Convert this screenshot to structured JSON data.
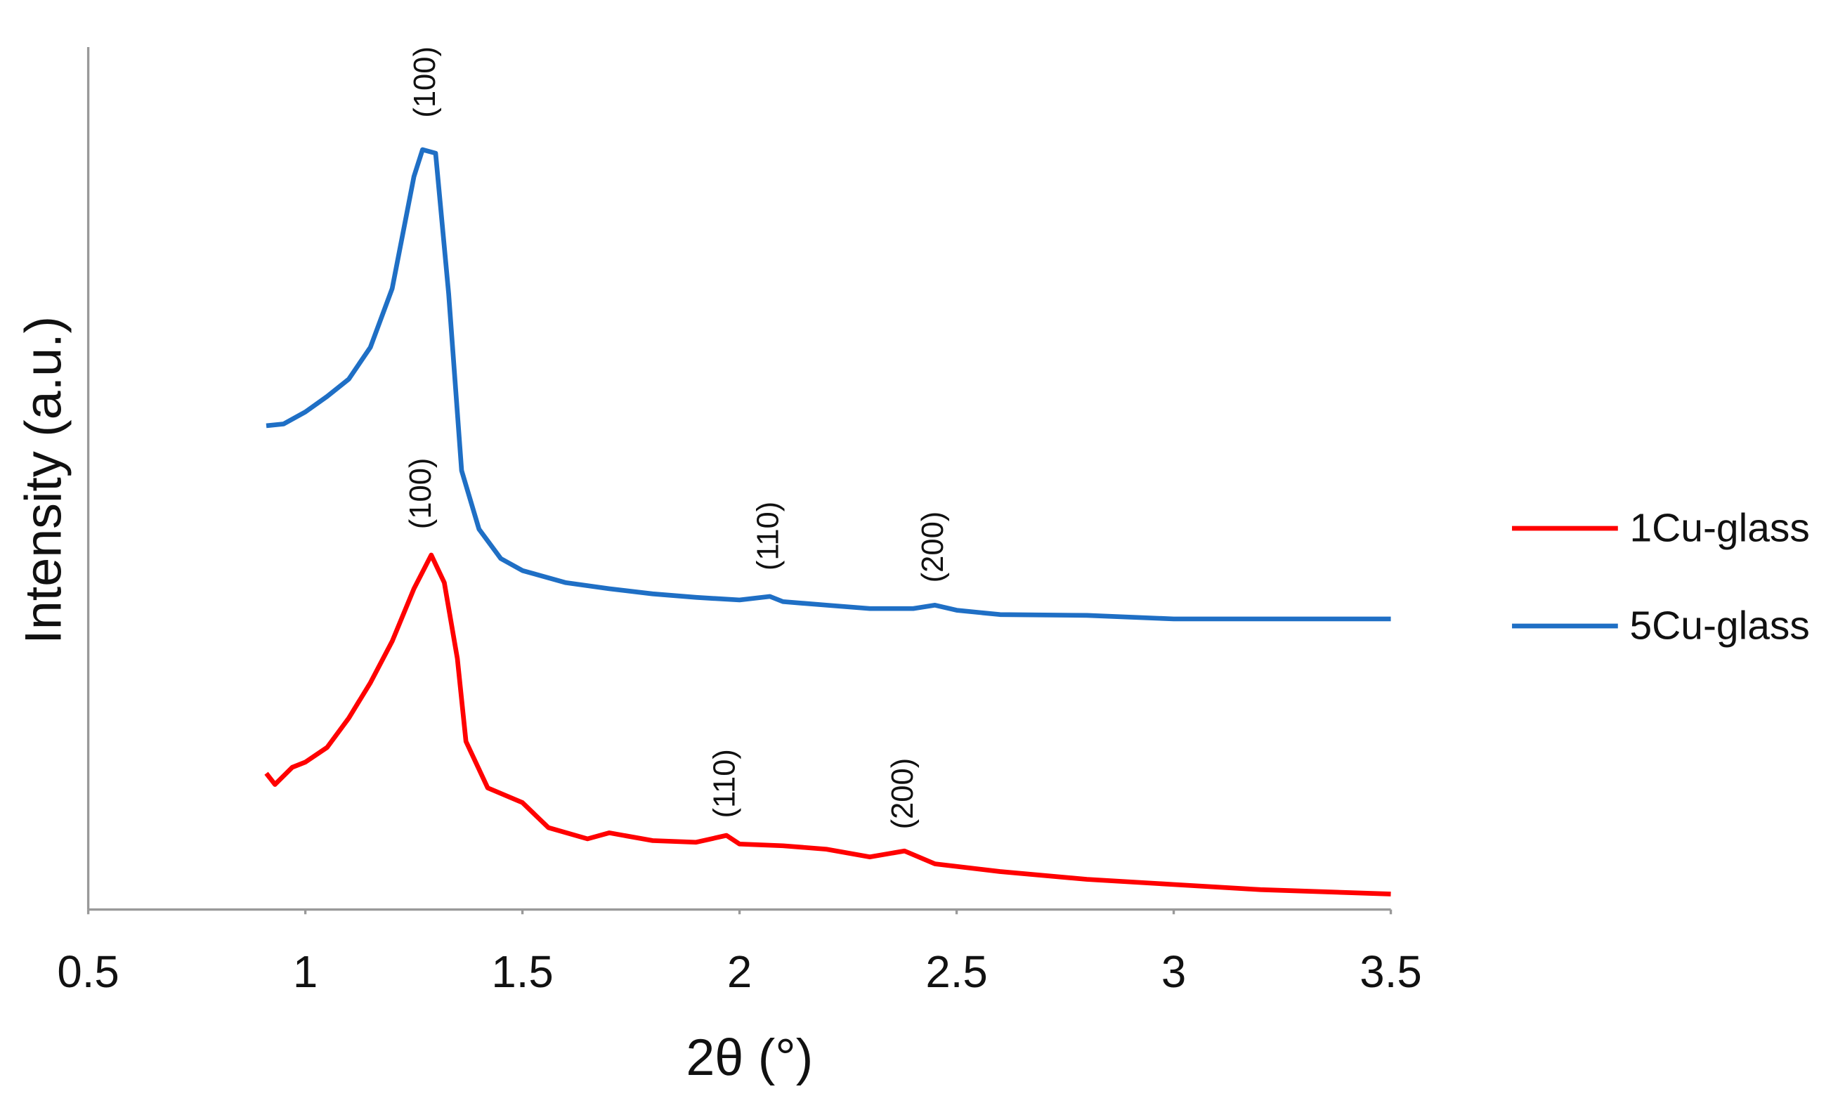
{
  "chart_data": {
    "type": "line",
    "x_label": "2θ (°)",
    "y_label": "Intensity (a.u.)",
    "xlim": [
      0.5,
      3.5
    ],
    "xticks": [
      0.5,
      1,
      1.5,
      2,
      2.5,
      3,
      3.5
    ],
    "ylim": [
      0,
      100
    ],
    "grid": false,
    "legend": "right",
    "series": [
      {
        "name": "1Cu-glass",
        "color": "#ff0000",
        "x": [
          0.91,
          0.93,
          0.97,
          1.0,
          1.05,
          1.1,
          1.15,
          1.2,
          1.25,
          1.29,
          1.32,
          1.35,
          1.37,
          1.42,
          1.5,
          1.56,
          1.65,
          1.7,
          1.8,
          1.9,
          1.97,
          2.0,
          2.1,
          2.2,
          2.3,
          2.38,
          2.45,
          2.6,
          2.8,
          3.0,
          3.2,
          3.5
        ],
        "values": [
          15.8,
          14.5,
          16.5,
          17.1,
          18.8,
          22.2,
          26.3,
          31.1,
          37.2,
          41.1,
          37.9,
          29.1,
          19.5,
          14.1,
          12.4,
          9.5,
          8.2,
          8.9,
          8.0,
          7.8,
          8.6,
          7.6,
          7.4,
          7.0,
          6.1,
          6.8,
          5.3,
          4.4,
          3.5,
          2.9,
          2.3,
          1.8
        ]
      },
      {
        "name": "5Cu-glass",
        "color": "#1f6fc5",
        "x": [
          0.91,
          0.95,
          1.0,
          1.05,
          1.1,
          1.15,
          1.2,
          1.25,
          1.27,
          1.3,
          1.33,
          1.36,
          1.4,
          1.45,
          1.5,
          1.6,
          1.7,
          1.8,
          1.9,
          2.0,
          2.07,
          2.1,
          2.2,
          2.3,
          2.4,
          2.45,
          2.5,
          2.6,
          2.8,
          3.0,
          3.5
        ],
        "values": [
          56.1,
          56.3,
          57.7,
          59.5,
          61.5,
          65.2,
          72.0,
          85.0,
          88.1,
          87.7,
          71.4,
          50.9,
          44.1,
          40.7,
          39.3,
          37.9,
          37.2,
          36.6,
          36.2,
          35.9,
          36.3,
          35.7,
          35.3,
          34.9,
          34.9,
          35.3,
          34.7,
          34.2,
          34.1,
          33.7,
          33.7
        ]
      }
    ],
    "annotations": [
      {
        "text": "(100)",
        "x": 1.28,
        "y": 91.8
      },
      {
        "text": "(110)",
        "x": 2.07,
        "y": 39.3
      },
      {
        "text": "(200)",
        "x": 2.45,
        "y": 37.9
      },
      {
        "text": "(100)",
        "x": 1.27,
        "y": 44.1
      },
      {
        "text": "(110)",
        "x": 1.97,
        "y": 10.6
      },
      {
        "text": "(200)",
        "x": 2.38,
        "y": 9.3
      }
    ]
  }
}
